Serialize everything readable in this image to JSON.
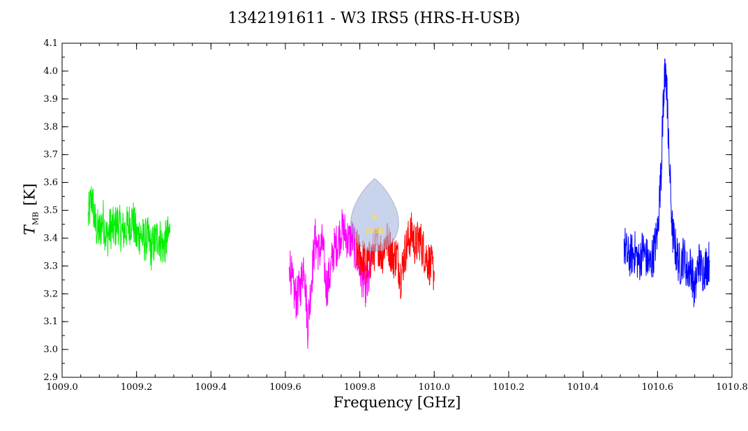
{
  "chart_data": {
    "type": "line",
    "title": "1342191611 - W3 IRS5 (HRS-H-USB)",
    "xlabel": "Frequency [GHz]",
    "ylabel": {
      "var": "T",
      "sub": "MB",
      "unit": "[K]"
    },
    "xlim": [
      1009.0,
      1010.8
    ],
    "ylim": [
      2.9,
      4.1
    ],
    "xticks": [
      "1009.0",
      "1009.2",
      "1009.4",
      "1009.6",
      "1009.8",
      "1010.0",
      "1010.2",
      "1010.4",
      "1010.6",
      "1010.8"
    ],
    "yticks": [
      "2.9",
      "3.0",
      "3.1",
      "3.2",
      "3.3",
      "3.4",
      "3.5",
      "3.6",
      "3.7",
      "3.8",
      "3.9",
      "4.0",
      "4.1"
    ],
    "grid": false,
    "series": [
      {
        "color": "#00ee00",
        "x": [
          1009.07,
          1009.08,
          1009.09,
          1009.1,
          1009.11,
          1009.12,
          1009.13,
          1009.14,
          1009.15,
          1009.16,
          1009.17,
          1009.18,
          1009.19,
          1009.2,
          1009.21,
          1009.22,
          1009.23,
          1009.24,
          1009.25,
          1009.26,
          1009.27,
          1009.28,
          1009.29
        ],
        "y": [
          3.47,
          3.55,
          3.44,
          3.42,
          3.47,
          3.4,
          3.44,
          3.43,
          3.46,
          3.42,
          3.43,
          3.45,
          3.47,
          3.4,
          3.42,
          3.39,
          3.4,
          3.36,
          3.39,
          3.41,
          3.37,
          3.39,
          3.42
        ]
      },
      {
        "color": "#ff00ff",
        "x": [
          1009.61,
          1009.62,
          1009.63,
          1009.64,
          1009.65,
          1009.66,
          1009.67,
          1009.68,
          1009.69,
          1009.7,
          1009.71,
          1009.72,
          1009.73,
          1009.74,
          1009.75,
          1009.76,
          1009.77,
          1009.78,
          1009.79,
          1009.8,
          1009.81,
          1009.82,
          1009.83
        ],
        "y": [
          3.33,
          3.22,
          3.18,
          3.22,
          3.32,
          3.08,
          3.25,
          3.4,
          3.35,
          3.38,
          3.22,
          3.27,
          3.36,
          3.38,
          3.43,
          3.42,
          3.39,
          3.4,
          3.34,
          3.3,
          3.24,
          3.22,
          3.3
        ]
      },
      {
        "color": "#ff0000",
        "x": [
          1009.79,
          1009.8,
          1009.81,
          1009.82,
          1009.83,
          1009.84,
          1009.85,
          1009.86,
          1009.87,
          1009.88,
          1009.89,
          1009.9,
          1009.91,
          1009.92,
          1009.93,
          1009.94,
          1009.95,
          1009.96,
          1009.97,
          1009.98,
          1009.99,
          1010.0
        ],
        "y": [
          3.36,
          3.34,
          3.32,
          3.3,
          3.33,
          3.36,
          3.38,
          3.34,
          3.4,
          3.37,
          3.33,
          3.34,
          3.26,
          3.34,
          3.39,
          3.42,
          3.37,
          3.4,
          3.36,
          3.33,
          3.3,
          3.28
        ]
      },
      {
        "color": "#0000ff",
        "x": [
          1010.51,
          1010.52,
          1010.53,
          1010.54,
          1010.55,
          1010.56,
          1010.57,
          1010.58,
          1010.59,
          1010.6,
          1010.61,
          1010.615,
          1010.62,
          1010.625,
          1010.63,
          1010.64,
          1010.65,
          1010.66,
          1010.67,
          1010.68,
          1010.69,
          1010.7,
          1010.71,
          1010.72,
          1010.73,
          1010.74
        ],
        "y": [
          3.38,
          3.33,
          3.34,
          3.35,
          3.31,
          3.36,
          3.33,
          3.3,
          3.35,
          3.42,
          3.65,
          3.88,
          3.98,
          3.95,
          3.72,
          3.42,
          3.35,
          3.3,
          3.34,
          3.28,
          3.3,
          3.2,
          3.32,
          3.28,
          3.3,
          3.32
        ]
      }
    ]
  },
  "colors": {
    "axis": "#000000",
    "logo_fill": "#9db0d8",
    "logo_star": "#ffdd44"
  },
  "icons": [
    "wise-logo"
  ],
  "logo_text": "WISE"
}
